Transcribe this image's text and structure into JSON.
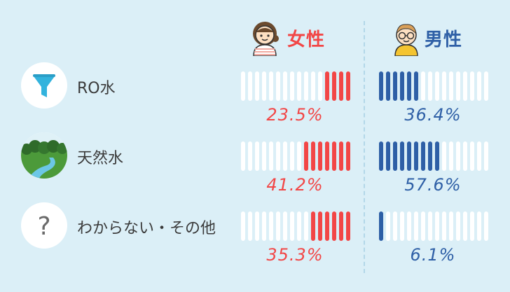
{
  "columns": {
    "female": {
      "label": "女性",
      "color": "#f24646"
    },
    "male": {
      "label": "男性",
      "color": "#2e5fa6"
    }
  },
  "icons": {
    "female": "girl-avatar-icon",
    "male": "boy-with-glasses-avatar-icon",
    "rows": [
      "funnel-icon",
      "nature-river-icon",
      "question-mark-icon"
    ]
  },
  "rows": [
    {
      "label": "RO水",
      "female_pct": "23.5%",
      "male_pct": "36.4%"
    },
    {
      "label": "天然水",
      "female_pct": "41.2%",
      "male_pct": "57.6%"
    },
    {
      "label": "わからない・その他",
      "female_pct": "35.3%",
      "male_pct": "6.1%"
    }
  ],
  "chart_data": {
    "type": "bar",
    "categories": [
      "RO水",
      "天然水",
      "わからない・その他"
    ],
    "series": [
      {
        "name": "女性",
        "values": [
          23.5,
          41.2,
          35.3
        ]
      },
      {
        "name": "男性",
        "values": [
          36.4,
          57.6,
          6.1
        ]
      }
    ],
    "segments_per_bar": 16,
    "unit": "%",
    "ylim": [
      0,
      100
    ]
  }
}
